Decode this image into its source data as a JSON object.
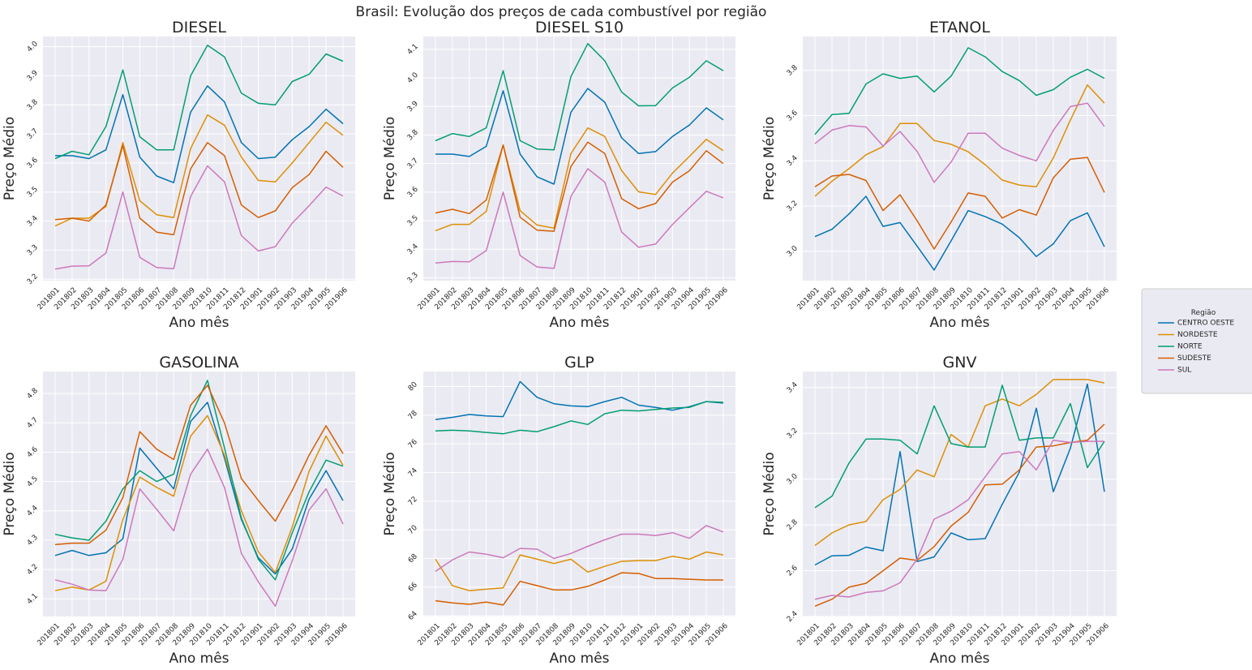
{
  "figure": {
    "title": "Brasil: Evolução dos preços de cada combustível por região",
    "legend_title": "Região",
    "legend_placement": "right",
    "background": "#eaeaf2",
    "grid_color": "#ffffff"
  },
  "chart_data": [
    {
      "type": "line",
      "title": "DIESEL",
      "xlabel": "Ano mês",
      "ylabel": "Preço Médio",
      "categories": [
        "201801",
        "201802",
        "201803",
        "201804",
        "201805",
        "201806",
        "201807",
        "201808",
        "201809",
        "201810",
        "201811",
        "201812",
        "201901",
        "201902",
        "201903",
        "201904",
        "201905",
        "201906"
      ],
      "ylim": [
        3.195,
        4.035
      ],
      "yticks": [
        3.2,
        3.3,
        3.4,
        3.5,
        3.6,
        3.7,
        3.8,
        3.9,
        4.0
      ],
      "ytick_labels": [
        "3.2",
        "3.3",
        "3.4",
        "3.5",
        "3.6",
        "3.7",
        "3.8",
        "3.9",
        "4.0"
      ],
      "grid": true,
      "series": [
        {
          "name": "CENTRO OESTE",
          "color": "#0173b2",
          "values": [
            3.625,
            3.625,
            3.615,
            3.645,
            3.835,
            3.62,
            3.555,
            3.532,
            3.775,
            3.865,
            3.81,
            3.67,
            3.615,
            3.62,
            3.68,
            3.725,
            3.785,
            3.735
          ]
        },
        {
          "name": "NORDESTE",
          "color": "#de8f05",
          "values": [
            3.383,
            3.41,
            3.41,
            3.45,
            3.67,
            3.47,
            3.422,
            3.412,
            3.65,
            3.765,
            3.73,
            3.62,
            3.54,
            3.535,
            3.6,
            3.67,
            3.74,
            3.695
          ]
        },
        {
          "name": "NORTE",
          "color": "#029e73",
          "values": [
            3.615,
            3.64,
            3.628,
            3.725,
            3.92,
            3.69,
            3.645,
            3.645,
            3.9,
            4.005,
            3.965,
            3.84,
            3.805,
            3.8,
            3.88,
            3.905,
            3.975,
            3.95
          ]
        },
        {
          "name": "SUDESTE",
          "color": "#d55e00",
          "values": [
            3.405,
            3.41,
            3.4,
            3.455,
            3.66,
            3.41,
            3.362,
            3.353,
            3.58,
            3.67,
            3.625,
            3.455,
            3.412,
            3.435,
            3.515,
            3.56,
            3.64,
            3.585
          ]
        },
        {
          "name": "SUL",
          "color": "#cc78bc",
          "values": [
            3.235,
            3.245,
            3.246,
            3.29,
            3.5,
            3.275,
            3.24,
            3.236,
            3.485,
            3.59,
            3.535,
            3.35,
            3.297,
            3.312,
            3.393,
            3.453,
            3.517,
            3.486
          ]
        }
      ]
    },
    {
      "type": "line",
      "title": "DIESEL S10",
      "xlabel": "Ano mês",
      "ylabel": "Preço Médio",
      "categories": [
        "201801",
        "201802",
        "201803",
        "201804",
        "201805",
        "201806",
        "201807",
        "201808",
        "201809",
        "201810",
        "201811",
        "201812",
        "201901",
        "201902",
        "201903",
        "201904",
        "201905",
        "201906"
      ],
      "ylim": [
        3.29,
        4.145
      ],
      "yticks": [
        3.3,
        3.4,
        3.5,
        3.6,
        3.7,
        3.8,
        3.9,
        4.0,
        4.1
      ],
      "ytick_labels": [
        "3.3",
        "3.4",
        "3.5",
        "3.6",
        "3.7",
        "3.8",
        "3.9",
        "4.0",
        "4.1"
      ],
      "grid": true,
      "series": [
        {
          "name": "CENTRO OESTE",
          "color": "#0173b2",
          "values": [
            3.733,
            3.733,
            3.725,
            3.76,
            3.955,
            3.733,
            3.654,
            3.628,
            3.88,
            3.963,
            3.915,
            3.79,
            3.735,
            3.742,
            3.795,
            3.835,
            3.895,
            3.853
          ]
        },
        {
          "name": "NORDESTE",
          "color": "#de8f05",
          "values": [
            3.465,
            3.487,
            3.487,
            3.532,
            3.765,
            3.535,
            3.485,
            3.474,
            3.735,
            3.825,
            3.795,
            3.675,
            3.601,
            3.592,
            3.667,
            3.725,
            3.785,
            3.745
          ]
        },
        {
          "name": "NORTE",
          "color": "#029e73",
          "values": [
            3.78,
            3.805,
            3.795,
            3.825,
            4.025,
            3.78,
            3.751,
            3.748,
            4.005,
            4.12,
            4.06,
            3.95,
            3.902,
            3.903,
            3.965,
            4.002,
            4.06,
            4.025
          ]
        },
        {
          "name": "SUDESTE",
          "color": "#d55e00",
          "values": [
            3.527,
            3.54,
            3.525,
            3.572,
            3.765,
            3.512,
            3.467,
            3.463,
            3.69,
            3.775,
            3.735,
            3.577,
            3.542,
            3.56,
            3.635,
            3.675,
            3.745,
            3.7
          ]
        },
        {
          "name": "SUL",
          "color": "#cc78bc",
          "values": [
            3.352,
            3.357,
            3.356,
            3.395,
            3.6,
            3.378,
            3.338,
            3.333,
            3.585,
            3.682,
            3.635,
            3.46,
            3.407,
            3.418,
            3.487,
            3.545,
            3.603,
            3.58
          ]
        }
      ]
    },
    {
      "type": "line",
      "title": "ETANOL",
      "xlabel": "Ano mês",
      "ylabel": "Preço Médio",
      "categories": [
        "201801",
        "201802",
        "201803",
        "201804",
        "201805",
        "201806",
        "201807",
        "201808",
        "201809",
        "201810",
        "201811",
        "201812",
        "201901",
        "201902",
        "201903",
        "201904",
        "201905",
        "201906"
      ],
      "ylim": [
        2.87,
        3.95
      ],
      "yticks": [
        3.0,
        3.2,
        3.4,
        3.6,
        3.8
      ],
      "ytick_labels": [
        "3.0",
        "3.2",
        "3.4",
        "3.6",
        "3.8"
      ],
      "grid": true,
      "series": [
        {
          "name": "CENTRO OESTE",
          "color": "#0173b2",
          "values": [
            3.065,
            3.097,
            3.165,
            3.243,
            3.11,
            3.127,
            3.023,
            2.917,
            3.047,
            3.18,
            3.153,
            3.12,
            3.06,
            2.977,
            3.033,
            3.135,
            3.17,
            3.02
          ]
        },
        {
          "name": "NORDESTE",
          "color": "#de8f05",
          "values": [
            3.243,
            3.31,
            3.365,
            3.427,
            3.463,
            3.565,
            3.565,
            3.49,
            3.473,
            3.44,
            3.383,
            3.315,
            3.293,
            3.285,
            3.413,
            3.58,
            3.736,
            3.655
          ]
        },
        {
          "name": "NORTE",
          "color": "#029e73",
          "values": [
            3.517,
            3.605,
            3.61,
            3.74,
            3.785,
            3.765,
            3.775,
            3.705,
            3.775,
            3.9,
            3.86,
            3.795,
            3.755,
            3.69,
            3.715,
            3.77,
            3.805,
            3.765
          ]
        },
        {
          "name": "SUDESTE",
          "color": "#d55e00",
          "values": [
            3.285,
            3.333,
            3.34,
            3.313,
            3.18,
            3.25,
            3.135,
            3.01,
            3.13,
            3.258,
            3.243,
            3.147,
            3.184,
            3.16,
            3.325,
            3.407,
            3.415,
            3.26
          ]
        },
        {
          "name": "SUL",
          "color": "#cc78bc",
          "values": [
            3.476,
            3.536,
            3.556,
            3.55,
            3.466,
            3.53,
            3.442,
            3.305,
            3.395,
            3.522,
            3.522,
            3.456,
            3.424,
            3.4,
            3.535,
            3.64,
            3.655,
            3.552
          ]
        }
      ]
    },
    {
      "type": "line",
      "title": "GASOLINA",
      "xlabel": "Ano mês",
      "ylabel": "Preço Médio",
      "categories": [
        "201801",
        "201802",
        "201803",
        "201804",
        "201805",
        "201806",
        "201807",
        "201808",
        "201809",
        "201810",
        "201811",
        "201812",
        "201901",
        "201902",
        "201903",
        "201904",
        "201905",
        "201906"
      ],
      "ylim": [
        4.04,
        4.875
      ],
      "yticks": [
        4.1,
        4.2,
        4.3,
        4.4,
        4.5,
        4.6,
        4.7,
        4.8
      ],
      "ytick_labels": [
        "4.1",
        "4.2",
        "4.3",
        "4.4",
        "4.5",
        "4.6",
        "4.7",
        "4.8"
      ],
      "grid": true,
      "series": [
        {
          "name": "CENTRO OESTE",
          "color": "#0173b2",
          "values": [
            4.248,
            4.265,
            4.248,
            4.257,
            4.305,
            4.614,
            4.545,
            4.475,
            4.705,
            4.77,
            4.58,
            4.37,
            4.24,
            4.185,
            4.27,
            4.44,
            4.537,
            4.435
          ]
        },
        {
          "name": "NORDESTE",
          "color": "#de8f05",
          "values": [
            4.128,
            4.14,
            4.13,
            4.16,
            4.37,
            4.515,
            4.48,
            4.45,
            4.655,
            4.725,
            4.59,
            4.4,
            4.26,
            4.19,
            4.345,
            4.535,
            4.655,
            4.555
          ]
        },
        {
          "name": "NORTE",
          "color": "#029e73",
          "values": [
            4.32,
            4.308,
            4.3,
            4.365,
            4.475,
            4.537,
            4.5,
            4.525,
            4.725,
            4.845,
            4.615,
            4.375,
            4.235,
            4.165,
            4.325,
            4.465,
            4.573,
            4.552
          ]
        },
        {
          "name": "SUDESTE",
          "color": "#d55e00",
          "values": [
            4.285,
            4.29,
            4.29,
            4.334,
            4.445,
            4.67,
            4.61,
            4.575,
            4.76,
            4.828,
            4.7,
            4.51,
            4.435,
            4.365,
            4.47,
            4.59,
            4.69,
            4.595
          ]
        },
        {
          "name": "SUL",
          "color": "#cc78bc",
          "values": [
            4.165,
            4.15,
            4.13,
            4.128,
            4.235,
            4.475,
            4.405,
            4.332,
            4.525,
            4.61,
            4.48,
            4.255,
            4.158,
            4.075,
            4.23,
            4.403,
            4.475,
            4.355
          ]
        }
      ]
    },
    {
      "type": "line",
      "title": "GLP",
      "xlabel": "Ano mês",
      "ylabel": "Preço Médio",
      "categories": [
        "201801",
        "201802",
        "201803",
        "201804",
        "201805",
        "201806",
        "201807",
        "201808",
        "201809",
        "201810",
        "201811",
        "201812",
        "201901",
        "201902",
        "201903",
        "201904",
        "201905",
        "201906"
      ],
      "ylim": [
        63.95,
        81.05
      ],
      "yticks": [
        64,
        66,
        68,
        70,
        72,
        74,
        76,
        78,
        80
      ],
      "ytick_labels": [
        "64",
        "66",
        "68",
        "70",
        "72",
        "74",
        "76",
        "78",
        "80"
      ],
      "grid": true,
      "series": [
        {
          "name": "CENTRO OESTE",
          "color": "#0173b2",
          "values": [
            77.7,
            77.85,
            78.05,
            77.95,
            77.9,
            80.35,
            79.25,
            78.8,
            78.65,
            78.6,
            78.95,
            79.25,
            78.7,
            78.55,
            78.35,
            78.6,
            78.95,
            78.85
          ]
        },
        {
          "name": "NORDESTE",
          "color": "#de8f05",
          "values": [
            67.95,
            66.1,
            65.75,
            65.85,
            65.95,
            68.25,
            67.95,
            67.65,
            67.95,
            67.05,
            67.45,
            67.8,
            67.85,
            67.85,
            68.15,
            67.95,
            68.45,
            68.25
          ]
        },
        {
          "name": "NORTE",
          "color": "#029e73",
          "values": [
            76.9,
            76.95,
            76.9,
            76.8,
            76.7,
            76.95,
            76.85,
            77.2,
            77.6,
            77.35,
            78.1,
            78.35,
            78.3,
            78.4,
            78.5,
            78.55,
            78.95,
            78.9
          ]
        },
        {
          "name": "SUDESTE",
          "color": "#d55e00",
          "values": [
            65.05,
            64.9,
            64.8,
            64.95,
            64.75,
            66.4,
            66.1,
            65.8,
            65.8,
            66.05,
            66.5,
            67.0,
            66.95,
            66.6,
            66.6,
            66.55,
            66.5,
            66.5
          ]
        },
        {
          "name": "SUL",
          "color": "#cc78bc",
          "values": [
            67.1,
            67.9,
            68.45,
            68.3,
            68.05,
            68.7,
            68.65,
            68.0,
            68.35,
            68.85,
            69.3,
            69.7,
            69.7,
            69.6,
            69.8,
            69.4,
            70.3,
            69.85
          ]
        }
      ]
    },
    {
      "type": "line",
      "title": "GNV",
      "xlabel": "Ano mês",
      "ylabel": "Preço Médio",
      "categories": [
        "201801",
        "201802",
        "201803",
        "201804",
        "201805",
        "201806",
        "201807",
        "201808",
        "201809",
        "201810",
        "201811",
        "201812",
        "201901",
        "201902",
        "201903",
        "201904",
        "201905",
        "201906"
      ],
      "ylim": [
        2.4,
        3.47
      ],
      "yticks": [
        2.4,
        2.6,
        2.8,
        3.0,
        3.2,
        3.4
      ],
      "ytick_labels": [
        "2.4",
        "2.6",
        "2.8",
        "3.0",
        "3.2",
        "3.4"
      ],
      "grid": true,
      "series": [
        {
          "name": "CENTRO OESTE",
          "color": "#0173b2",
          "values": [
            2.625,
            2.665,
            2.667,
            2.703,
            2.687,
            3.12,
            2.64,
            2.66,
            2.765,
            2.735,
            2.74,
            2.89,
            3.03,
            3.31,
            2.945,
            3.135,
            3.415,
            2.945
          ]
        },
        {
          "name": "NORDESTE",
          "color": "#de8f05",
          "values": [
            2.71,
            2.765,
            2.8,
            2.815,
            2.91,
            2.955,
            3.04,
            3.01,
            3.195,
            3.14,
            3.32,
            3.35,
            3.32,
            3.37,
            3.435,
            3.435,
            3.435,
            3.42
          ]
        },
        {
          "name": "NORTE",
          "color": "#029e73",
          "values": [
            2.875,
            2.925,
            3.07,
            3.175,
            3.175,
            3.17,
            3.11,
            3.32,
            3.155,
            3.14,
            3.14,
            3.41,
            3.17,
            3.18,
            3.18,
            3.33,
            3.05,
            3.165
          ]
        },
        {
          "name": "SUDESTE",
          "color": "#d55e00",
          "values": [
            2.445,
            2.475,
            2.528,
            2.545,
            2.6,
            2.655,
            2.645,
            2.705,
            2.795,
            2.855,
            2.975,
            2.978,
            3.04,
            3.14,
            3.145,
            3.16,
            3.17,
            3.24
          ]
        },
        {
          "name": "SUL",
          "color": "#cc78bc",
          "values": [
            2.475,
            2.492,
            2.485,
            2.505,
            2.512,
            2.547,
            2.65,
            2.825,
            2.86,
            2.91,
            3.01,
            3.11,
            3.12,
            3.04,
            3.17,
            3.16,
            3.165,
            3.165
          ]
        }
      ]
    }
  ]
}
